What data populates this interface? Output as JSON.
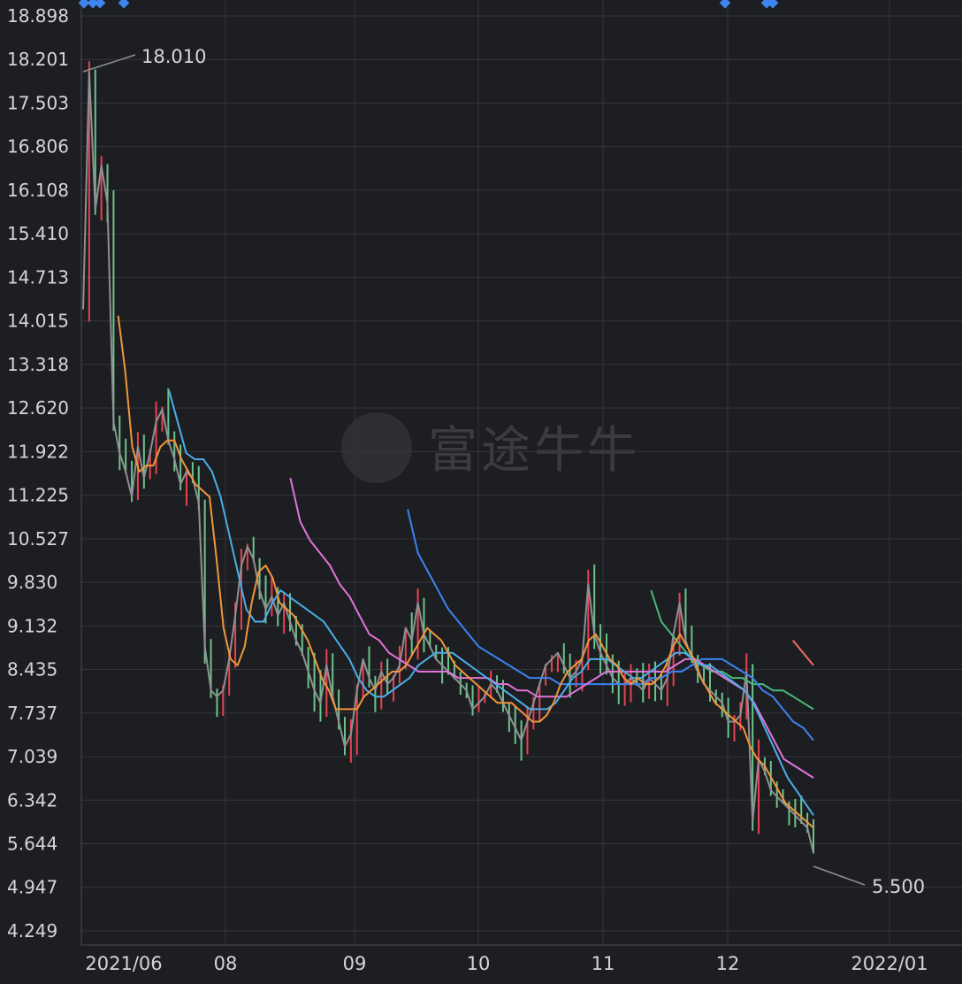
{
  "watermark": "富途牛牛",
  "chart_data": {
    "type": "candlestick",
    "y_ticks": [
      "18.898",
      "18.201",
      "17.503",
      "16.806",
      "16.108",
      "15.410",
      "14.713",
      "14.015",
      "13.318",
      "12.620",
      "11.922",
      "11.225",
      "10.527",
      "9.830",
      "9.132",
      "8.435",
      "7.737",
      "7.039",
      "6.342",
      "5.644",
      "4.947",
      "4.249"
    ],
    "ylim": [
      4.249,
      18.898
    ],
    "x_ticks": [
      "2021/06",
      "08",
      "09",
      "10",
      "11",
      "12",
      "2022/01"
    ],
    "annotations": {
      "high": "18.010",
      "low": "5.500"
    },
    "colors": {
      "up": "#e6434f",
      "down": "#6cc38a",
      "close_line": "#8f9094",
      "ma5": "#f0963a",
      "ma10": "#4aaee8",
      "ma20": "#e273d9",
      "ma30": "#3d82f0",
      "ma60": "#49b97a",
      "ma120": "#f26b5e",
      "marker": "#3d86f2"
    },
    "close": [
      14.2,
      18.0,
      15.8,
      16.5,
      15.9,
      12.4,
      11.9,
      11.6,
      11.2,
      12.0,
      11.5,
      11.9,
      12.4,
      12.6,
      12.1,
      11.8,
      11.4,
      11.6,
      11.5,
      11.1,
      8.8,
      8.1,
      8.0,
      8.1,
      8.6,
      9.3,
      10.1,
      10.4,
      10.2,
      9.7,
      9.4,
      9.6,
      9.3,
      9.5,
      9.2,
      8.9,
      8.7,
      8.4,
      8.1,
      7.9,
      8.5,
      8.0,
      7.6,
      7.2,
      7.4,
      8.1,
      8.6,
      8.3,
      8.1,
      8.4,
      8.2,
      8.3,
      8.5,
      9.1,
      8.9,
      9.5,
      9.0,
      8.8,
      8.6,
      8.5,
      8.4,
      8.3,
      8.2,
      8.1,
      7.8,
      7.9,
      8.0,
      8.2,
      8.1,
      7.9,
      7.7,
      7.5,
      7.3,
      7.6,
      7.9,
      8.2,
      8.5,
      8.6,
      8.7,
      8.5,
      8.3,
      8.4,
      8.6,
      9.8,
      9.0,
      8.7,
      8.5,
      8.3,
      8.2,
      8.2,
      8.3,
      8.2,
      8.1,
      8.3,
      8.2,
      8.1,
      8.3,
      9.0,
      9.5,
      8.9,
      8.6,
      8.4,
      8.2,
      8.1,
      8.0,
      7.9,
      7.6,
      7.6,
      7.7,
      8.4,
      6.0,
      7.0,
      6.8,
      6.5,
      6.4,
      6.3,
      6.2,
      6.1,
      6.0,
      5.9,
      5.5
    ],
    "ma5": [
      null,
      null,
      null,
      null,
      null,
      14.1,
      13.2,
      12.0,
      11.6,
      11.7,
      11.7,
      12.0,
      12.1,
      12.1,
      11.8,
      11.6,
      11.4,
      11.3,
      11.2,
      10.2,
      9.1,
      8.6,
      8.5,
      8.8,
      9.5,
      10.0,
      10.1,
      9.9,
      9.5,
      9.4,
      9.3,
      9.1,
      8.9,
      8.6,
      8.3,
      8.1,
      7.8,
      7.8,
      7.8,
      7.8,
      8.0,
      8.1,
      8.2,
      8.3,
      8.4,
      8.4,
      8.5,
      8.7,
      8.9,
      9.1,
      9.0,
      8.9,
      8.7,
      8.5,
      8.4,
      8.3,
      8.2,
      8.1,
      8.0,
      7.9,
      7.9,
      7.9,
      7.8,
      7.7,
      7.6,
      7.6,
      7.7,
      7.9,
      8.2,
      8.4,
      8.5,
      8.6,
      8.9,
      9.0,
      8.8,
      8.6,
      8.5,
      8.3,
      8.2,
      8.3,
      8.2,
      8.2,
      8.3,
      8.5,
      8.8,
      9.0,
      8.8,
      8.6,
      8.3,
      8.1,
      7.9,
      7.8,
      7.7,
      7.6,
      7.5,
      7.2,
      7.0,
      6.9,
      6.7,
      6.5,
      6.3,
      6.2,
      6.1,
      6.0,
      5.9
    ],
    "ma10": [
      null,
      null,
      null,
      null,
      null,
      null,
      null,
      null,
      null,
      null,
      12.9,
      12.4,
      11.9,
      11.8,
      11.8,
      11.6,
      11.2,
      10.6,
      10.0,
      9.4,
      9.2,
      9.2,
      9.5,
      9.7,
      9.6,
      9.5,
      9.4,
      9.3,
      9.2,
      9.0,
      8.8,
      8.6,
      8.3,
      8.1,
      8.0,
      8.0,
      8.1,
      8.2,
      8.3,
      8.5,
      8.6,
      8.7,
      8.7,
      8.7,
      8.6,
      8.5,
      8.4,
      8.3,
      8.2,
      8.1,
      8.0,
      7.9,
      7.8,
      7.8,
      7.8,
      7.9,
      8.1,
      8.3,
      8.4,
      8.6,
      8.6,
      8.6,
      8.5,
      8.4,
      8.3,
      8.3,
      8.4,
      8.5,
      8.6,
      8.7,
      8.7,
      8.6,
      8.5,
      8.5,
      8.4,
      8.3,
      8.2,
      8.1,
      7.9,
      7.6,
      7.3,
      7.0,
      6.7,
      6.5,
      6.3,
      6.1
    ],
    "ma20": [
      null,
      null,
      null,
      null,
      null,
      null,
      null,
      null,
      null,
      null,
      null,
      null,
      null,
      null,
      null,
      null,
      null,
      null,
      null,
      null,
      null,
      11.5,
      10.8,
      10.5,
      10.3,
      10.1,
      9.8,
      9.6,
      9.3,
      9.0,
      8.9,
      8.7,
      8.6,
      8.5,
      8.4,
      8.4,
      8.4,
      8.4,
      8.3,
      8.3,
      8.3,
      8.3,
      8.2,
      8.2,
      8.1,
      8.1,
      8.0,
      8.0,
      8.0,
      8.0,
      8.1,
      8.2,
      8.3,
      8.4,
      8.4,
      8.4,
      8.4,
      8.4,
      8.4,
      8.4,
      8.5,
      8.6,
      8.6,
      8.5,
      8.4,
      8.3,
      8.2,
      8.1,
      7.9,
      7.6,
      7.3,
      7.0,
      6.9,
      6.8,
      6.7
    ],
    "ma30": [
      null,
      null,
      null,
      null,
      null,
      null,
      null,
      null,
      null,
      null,
      null,
      null,
      null,
      null,
      null,
      null,
      null,
      null,
      null,
      null,
      null,
      null,
      null,
      null,
      null,
      null,
      null,
      null,
      null,
      null,
      null,
      null,
      11.0,
      10.3,
      10.0,
      9.7,
      9.4,
      9.2,
      9.0,
      8.8,
      8.7,
      8.6,
      8.5,
      8.4,
      8.3,
      8.3,
      8.3,
      8.2,
      8.2,
      8.2,
      8.2,
      8.2,
      8.2,
      8.2,
      8.2,
      8.2,
      8.3,
      8.3,
      8.4,
      8.4,
      8.5,
      8.6,
      8.6,
      8.6,
      8.5,
      8.4,
      8.3,
      8.1,
      8.0,
      7.8,
      7.6,
      7.5,
      7.3
    ],
    "ma60": [
      null,
      null,
      null,
      null,
      null,
      null,
      null,
      null,
      null,
      null,
      null,
      null,
      null,
      null,
      null,
      null,
      null,
      null,
      null,
      null,
      null,
      null,
      null,
      null,
      null,
      null,
      null,
      null,
      null,
      null,
      null,
      null,
      null,
      null,
      null,
      null,
      null,
      null,
      null,
      null,
      null,
      null,
      null,
      null,
      null,
      null,
      null,
      null,
      null,
      null,
      null,
      null,
      null,
      null,
      null,
      null,
      9.7,
      9.2,
      9.0,
      8.8,
      8.6,
      8.5,
      8.4,
      8.4,
      8.3,
      8.3,
      8.2,
      8.2,
      8.1,
      8.1,
      8.0,
      7.9,
      7.8
    ],
    "ma120": [
      null,
      null,
      null,
      null,
      null,
      null,
      null,
      null,
      null,
      null,
      null,
      null,
      null,
      null,
      null,
      null,
      null,
      null,
      null,
      null,
      null,
      null,
      null,
      null,
      null,
      null,
      null,
      null,
      null,
      null,
      null,
      null,
      null,
      null,
      null,
      null,
      null,
      null,
      null,
      null,
      null,
      null,
      null,
      null,
      null,
      null,
      null,
      null,
      null,
      null,
      null,
      null,
      null,
      null,
      null,
      null,
      null,
      null,
      null,
      null,
      null,
      null,
      null,
      null,
      null,
      null,
      null,
      null,
      null,
      8.9,
      8.7,
      8.5
    ]
  }
}
